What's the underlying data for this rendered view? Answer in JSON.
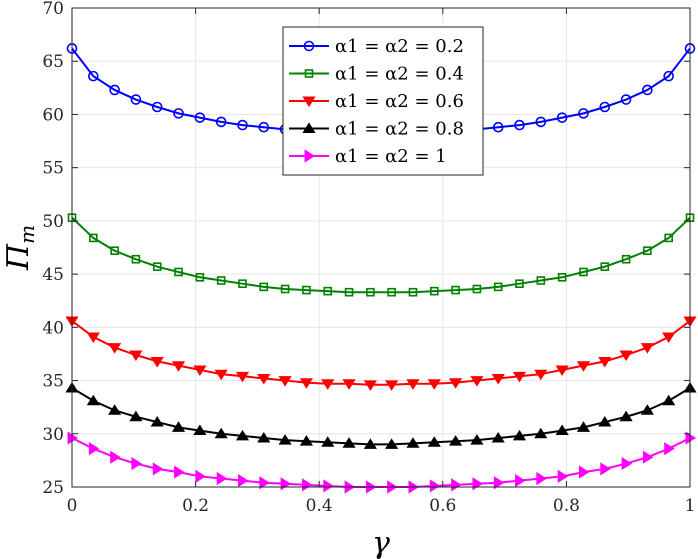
{
  "chart_data": {
    "type": "line",
    "title": "",
    "xlabel": "γ",
    "ylabel": "Π",
    "ylabel_sub": "m",
    "xlim": [
      0,
      1
    ],
    "ylim": [
      25,
      70
    ],
    "xticks": [
      "0",
      "0.2",
      "0.4",
      "0.6",
      "0.8",
      "1"
    ],
    "yticks": [
      "25",
      "30",
      "35",
      "40",
      "45",
      "50",
      "55",
      "60",
      "65",
      "70"
    ],
    "grid": true,
    "legend_position": "top-center",
    "x": [
      0,
      0.0345,
      0.069,
      0.1034,
      0.1379,
      0.1724,
      0.2069,
      0.2414,
      0.2759,
      0.3103,
      0.3448,
      0.3793,
      0.4138,
      0.4483,
      0.4828,
      0.5172,
      0.5517,
      0.5862,
      0.6207,
      0.6552,
      0.6897,
      0.7241,
      0.7586,
      0.7931,
      0.8276,
      0.8621,
      0.8966,
      0.931,
      0.9655,
      1
    ],
    "series": [
      {
        "name": "α1 = α2 = 0.2",
        "color": "#0000ff",
        "marker": "circle",
        "values": [
          66.2,
          63.6,
          62.3,
          61.4,
          60.7,
          60.1,
          59.7,
          59.3,
          59.0,
          58.8,
          58.6,
          58.4,
          58.3,
          58.2,
          58.2,
          58.2,
          58.2,
          58.3,
          58.4,
          58.6,
          58.8,
          59.0,
          59.3,
          59.7,
          60.1,
          60.7,
          61.4,
          62.3,
          63.6,
          66.2
        ]
      },
      {
        "name": "α1 = α2 = 0.4",
        "color": "#008000",
        "marker": "square",
        "values": [
          50.3,
          48.4,
          47.2,
          46.4,
          45.7,
          45.2,
          44.7,
          44.4,
          44.1,
          43.8,
          43.6,
          43.5,
          43.4,
          43.3,
          43.3,
          43.3,
          43.3,
          43.4,
          43.5,
          43.6,
          43.8,
          44.1,
          44.4,
          44.7,
          45.2,
          45.7,
          46.4,
          47.2,
          48.4,
          50.3
        ]
      },
      {
        "name": "α1 = α2 = 0.6",
        "color": "#ff0000",
        "marker": "triangle-down",
        "values": [
          40.6,
          39.1,
          38.1,
          37.4,
          36.8,
          36.4,
          36.0,
          35.6,
          35.4,
          35.2,
          35.0,
          34.8,
          34.7,
          34.7,
          34.6,
          34.6,
          34.7,
          34.7,
          34.8,
          35.0,
          35.2,
          35.4,
          35.6,
          36.0,
          36.4,
          36.8,
          37.4,
          38.1,
          39.1,
          40.6
        ]
      },
      {
        "name": "α1 = α2 = 0.8",
        "color": "#000000",
        "marker": "triangle-up",
        "values": [
          34.3,
          33.1,
          32.2,
          31.6,
          31.1,
          30.6,
          30.3,
          30.0,
          29.8,
          29.6,
          29.4,
          29.3,
          29.2,
          29.1,
          29.0,
          29.0,
          29.1,
          29.2,
          29.3,
          29.4,
          29.6,
          29.8,
          30.0,
          30.3,
          30.6,
          31.1,
          31.6,
          32.2,
          33.1,
          34.3
        ]
      },
      {
        "name": "α1 = α2 = 1",
        "color": "#ff00ff",
        "marker": "triangle-right",
        "values": [
          29.6,
          28.6,
          27.8,
          27.2,
          26.7,
          26.4,
          26.0,
          25.8,
          25.6,
          25.4,
          25.3,
          25.2,
          25.1,
          25.0,
          25.0,
          25.0,
          25.0,
          25.1,
          25.2,
          25.3,
          25.4,
          25.6,
          25.8,
          26.0,
          26.4,
          26.7,
          27.2,
          27.8,
          28.6,
          29.6
        ]
      }
    ]
  }
}
